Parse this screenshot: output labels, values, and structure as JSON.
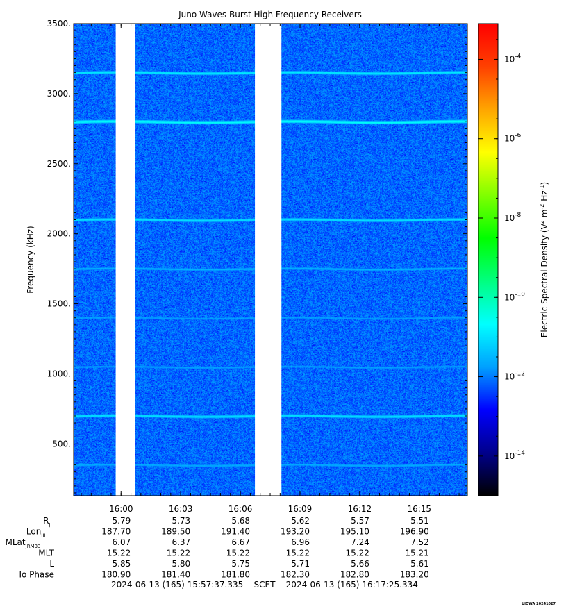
{
  "chart_data": {
    "type": "heatmap",
    "title": "Juno Waves Burst High Frequency Receivers",
    "ylabel": "Frequency (kHz)",
    "colorbar_label": "Electric Spectral Density (V² m⁻² Hz⁻¹)",
    "colorbar_label_parts": {
      "base": "Electric Spectral Density (V",
      "exp1": "2",
      "mid": " m",
      "exp2": "-2",
      "mid2": " Hz",
      "exp3": "-1",
      "end": ")"
    },
    "ylim": [
      130,
      3500
    ],
    "y_ticks": [
      {
        "value": 500,
        "label": "500."
      },
      {
        "value": 1000,
        "label": "1000."
      },
      {
        "value": 1500,
        "label": "1500."
      },
      {
        "value": 2000,
        "label": "2000."
      },
      {
        "value": 2500,
        "label": "2500."
      },
      {
        "value": 3000,
        "label": "3000."
      },
      {
        "value": 3500,
        "label": "3500."
      }
    ],
    "xlim_seconds": [
      0,
      1188
    ],
    "x_ticks": [
      {
        "value": 143,
        "label": "16:00"
      },
      {
        "value": 323,
        "label": "16:03"
      },
      {
        "value": 503,
        "label": "16:06"
      },
      {
        "value": 683,
        "label": "16:09"
      },
      {
        "value": 863,
        "label": "16:12"
      },
      {
        "value": 1043,
        "label": "16:15"
      }
    ],
    "data_gaps_seconds": [
      [
        127,
        185
      ],
      [
        547,
        627
      ]
    ],
    "colorbar": {
      "log_min": -15,
      "log_max": -3.1,
      "ticks": [
        {
          "exp": -14,
          "label_base": "10",
          "label_exp": "-14"
        },
        {
          "exp": -12,
          "label_base": "10",
          "label_exp": "-12"
        },
        {
          "exp": -10,
          "label_base": "10",
          "label_exp": "-10"
        },
        {
          "exp": -8,
          "label_base": "10",
          "label_exp": "-8"
        },
        {
          "exp": -6,
          "label_base": "10",
          "label_exp": "-6"
        },
        {
          "exp": -4,
          "label_base": "10",
          "label_exp": "-4"
        }
      ],
      "colors": [
        "#000000",
        "#00008b",
        "#0000ff",
        "#00a0ff",
        "#00ffff",
        "#00ff80",
        "#00ff00",
        "#80ff00",
        "#ffff00",
        "#ffa500",
        "#ff4000",
        "#ff0000"
      ]
    },
    "background_log_density": -12.1,
    "emission_lines": [
      {
        "freq_khz": 3150,
        "log_density": -10.9
      },
      {
        "freq_khz": 2800,
        "log_density": -10.6
      },
      {
        "freq_khz": 2100,
        "log_density": -11.0
      },
      {
        "freq_khz": 1750,
        "log_density": -11.5
      },
      {
        "freq_khz": 1400,
        "log_density": -11.7
      },
      {
        "freq_khz": 1050,
        "log_density": -11.7
      },
      {
        "freq_khz": 700,
        "log_density": -11.0
      },
      {
        "freq_khz": 350,
        "log_density": -11.6
      }
    ],
    "ephemeris": {
      "rows": [
        {
          "label": "R",
          "sub": "J",
          "values": [
            "5.79",
            "5.73",
            "5.68",
            "5.62",
            "5.57",
            "5.51"
          ]
        },
        {
          "label": "Lon",
          "sub": "III",
          "values": [
            "187.70",
            "189.50",
            "191.40",
            "193.20",
            "195.10",
            "196.90"
          ]
        },
        {
          "label": "MLat",
          "sub": "JRM33",
          "values": [
            "6.07",
            "6.37",
            "6.67",
            "6.96",
            "7.24",
            "7.52"
          ]
        },
        {
          "label": "MLT",
          "sub": "",
          "values": [
            "15.22",
            "15.22",
            "15.22",
            "15.22",
            "15.22",
            "15.21"
          ]
        },
        {
          "label": "L",
          "sub": "",
          "values": [
            "5.85",
            "5.80",
            "5.75",
            "5.71",
            "5.66",
            "5.61"
          ]
        },
        {
          "label": "Io Phase",
          "sub": "",
          "values": [
            "180.90",
            "181.40",
            "181.80",
            "182.30",
            "182.80",
            "183.20"
          ]
        }
      ]
    },
    "time_range_label": "2024-06-13 (165) 15:57:37.335    SCET    2024-06-13 (165) 16:17:25.334",
    "credit": "UIOWA 20241027"
  }
}
